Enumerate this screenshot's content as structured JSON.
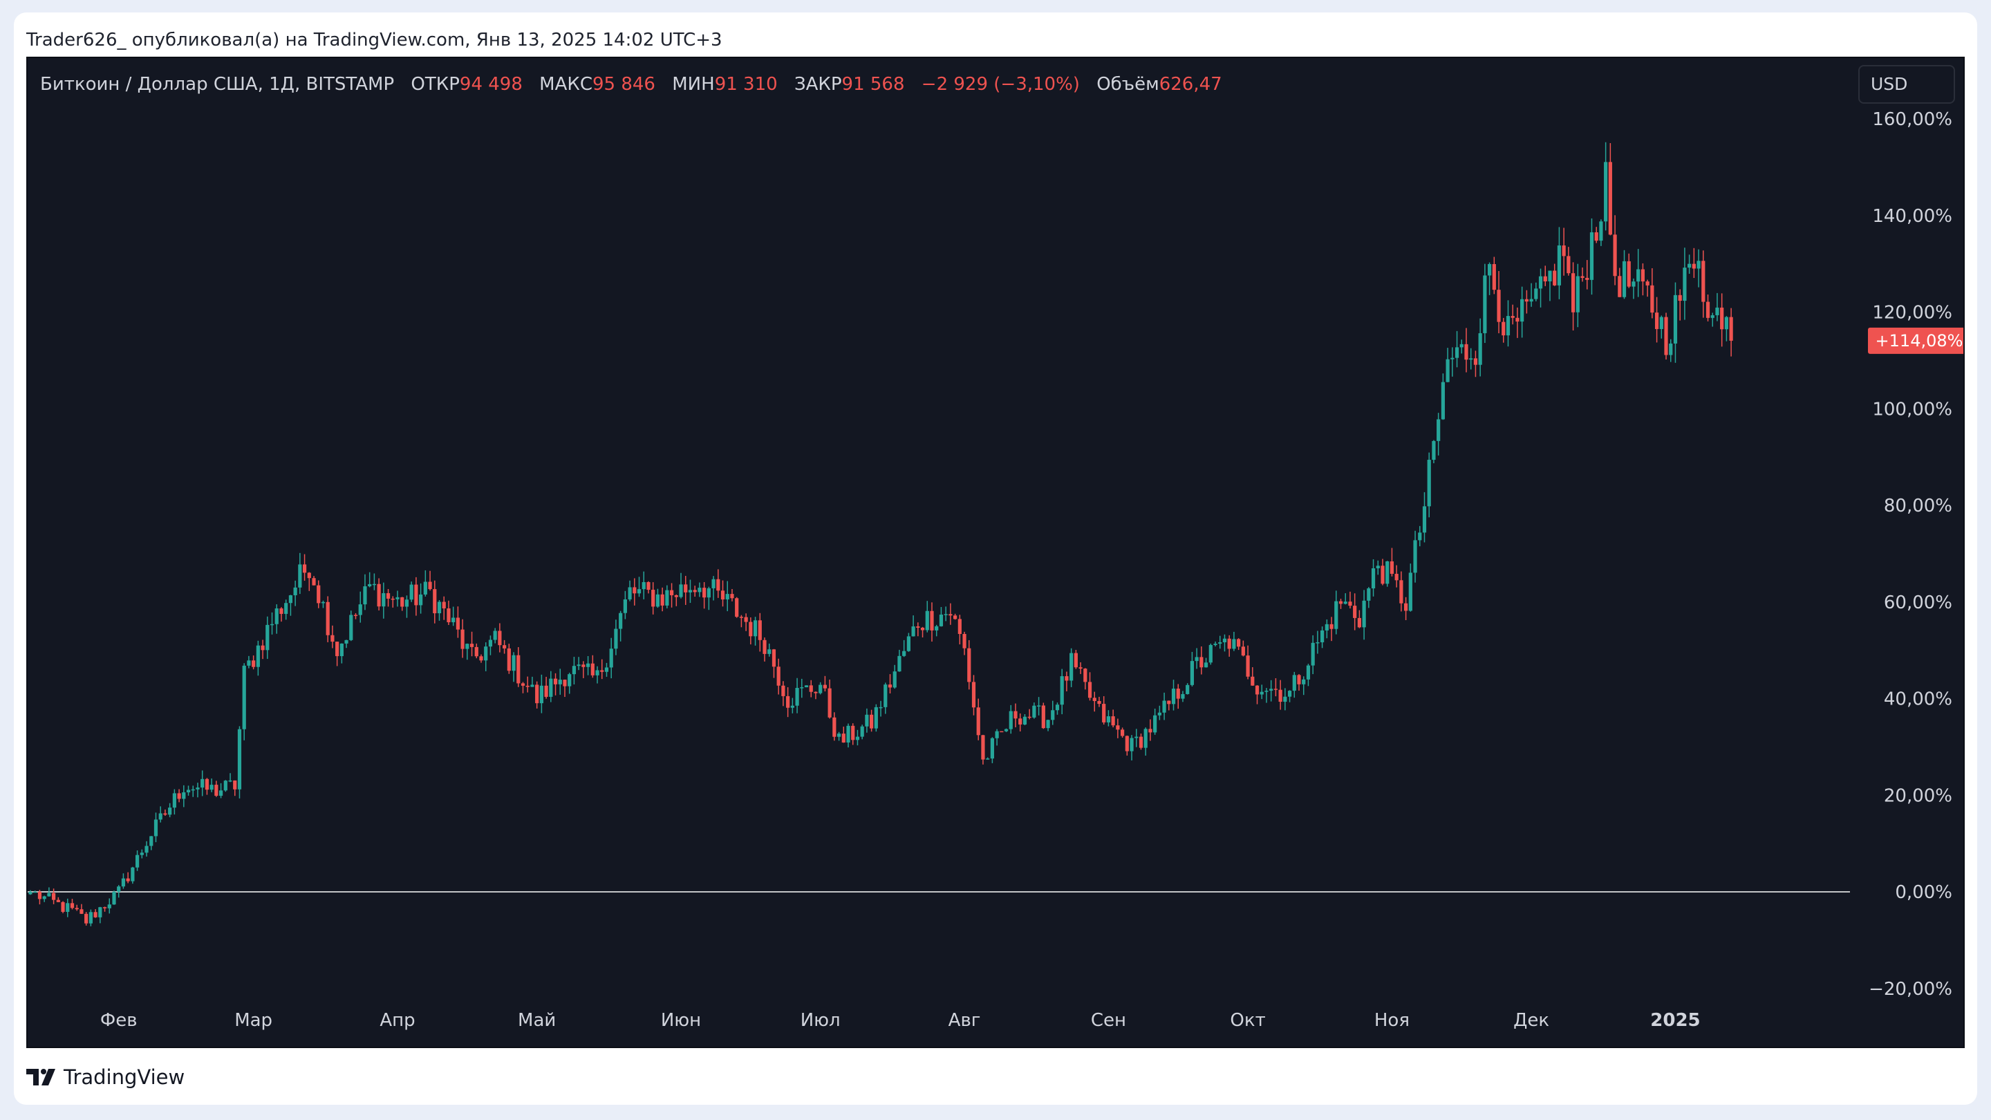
{
  "header": {
    "published_line": "Trader626_ опубликовал(а) на TradingView.com, Янв 13, 2025 14:02 UTC+3"
  },
  "legend": {
    "symbol": "Биткоин / Доллар США, 1Д, BITSTAMP",
    "open_label": "ОТКР",
    "open_value": "94 498",
    "high_label": "МАКС",
    "high_value": "95 846",
    "low_label": "МИН",
    "low_value": "91 310",
    "close_label": "ЗАКР",
    "close_value": "91 568",
    "change": "−2 929 (−3,10%)",
    "volume_label": "Объём",
    "volume_value": "626,47"
  },
  "currency_button": "USD",
  "footer": {
    "brand": "TradingView"
  },
  "colors": {
    "up": "#26a69a",
    "down": "#ef5350",
    "background": "#131722",
    "text": "#d1d4dc",
    "zero_line": "#ffffff"
  },
  "chart_data": {
    "type": "candlestick",
    "scale": "percent",
    "ylim": [
      -26,
      162
    ],
    "y_ticks": [
      160,
      140,
      120,
      100,
      80,
      60,
      40,
      20,
      0,
      -20
    ],
    "y_tick_labels": [
      "160,00%",
      "140,00%",
      "120,00%",
      "100,00%",
      "80,00%",
      "60,00%",
      "40,00%",
      "20,00%",
      "0,00%",
      "−20,00%"
    ],
    "x_ticks": [
      {
        "label": "Фев",
        "date": "2024-02-01"
      },
      {
        "label": "Мар",
        "date": "2024-03-01"
      },
      {
        "label": "Апр",
        "date": "2024-04-01"
      },
      {
        "label": "Май",
        "date": "2024-05-01"
      },
      {
        "label": "Июн",
        "date": "2024-06-01"
      },
      {
        "label": "Июл",
        "date": "2024-07-01"
      },
      {
        "label": "Авг",
        "date": "2024-08-01"
      },
      {
        "label": "Сен",
        "date": "2024-09-01"
      },
      {
        "label": "Окт",
        "date": "2024-10-01"
      },
      {
        "label": "Ноя",
        "date": "2024-11-01"
      },
      {
        "label": "Дек",
        "date": "2024-12-01"
      },
      {
        "label": "2025",
        "date": "2025-01-01"
      }
    ],
    "date_range": [
      "2024-01-13",
      "2025-01-13"
    ],
    "x_extent_end": "2025-02-04",
    "zero_line": 0,
    "last_value": 114.08,
    "last_value_label": "+114,08%",
    "close_path": [
      {
        "date": "2024-01-13",
        "value": 0
      },
      {
        "date": "2024-01-22",
        "value": -4
      },
      {
        "date": "2024-01-25",
        "value": -6
      },
      {
        "date": "2024-02-01",
        "value": 0
      },
      {
        "date": "2024-02-08",
        "value": 12
      },
      {
        "date": "2024-02-15",
        "value": 22
      },
      {
        "date": "2024-02-22",
        "value": 21
      },
      {
        "date": "2024-02-26",
        "value": 22
      },
      {
        "date": "2024-02-28",
        "value": 45
      },
      {
        "date": "2024-03-05",
        "value": 56
      },
      {
        "date": "2024-03-13",
        "value": 68
      },
      {
        "date": "2024-03-19",
        "value": 50
      },
      {
        "date": "2024-03-26",
        "value": 63
      },
      {
        "date": "2024-04-01",
        "value": 60
      },
      {
        "date": "2024-04-08",
        "value": 62
      },
      {
        "date": "2024-04-13",
        "value": 55
      },
      {
        "date": "2024-04-17",
        "value": 48
      },
      {
        "date": "2024-04-22",
        "value": 52
      },
      {
        "date": "2024-05-01",
        "value": 40
      },
      {
        "date": "2024-05-08",
        "value": 46
      },
      {
        "date": "2024-05-14",
        "value": 44
      },
      {
        "date": "2024-05-21",
        "value": 62
      },
      {
        "date": "2024-05-28",
        "value": 61
      },
      {
        "date": "2024-06-05",
        "value": 64
      },
      {
        "date": "2024-06-12",
        "value": 59
      },
      {
        "date": "2024-06-19",
        "value": 52
      },
      {
        "date": "2024-06-24",
        "value": 40
      },
      {
        "date": "2024-07-01",
        "value": 43
      },
      {
        "date": "2024-07-05",
        "value": 31
      },
      {
        "date": "2024-07-12",
        "value": 35
      },
      {
        "date": "2024-07-22",
        "value": 56
      },
      {
        "date": "2024-07-29",
        "value": 58
      },
      {
        "date": "2024-08-01",
        "value": 50
      },
      {
        "date": "2024-08-05",
        "value": 27
      },
      {
        "date": "2024-08-12",
        "value": 37
      },
      {
        "date": "2024-08-19",
        "value": 36
      },
      {
        "date": "2024-08-24",
        "value": 47
      },
      {
        "date": "2024-08-30",
        "value": 37
      },
      {
        "date": "2024-09-06",
        "value": 30
      },
      {
        "date": "2024-09-12",
        "value": 36
      },
      {
        "date": "2024-09-20",
        "value": 47
      },
      {
        "date": "2024-09-27",
        "value": 52
      },
      {
        "date": "2024-10-03",
        "value": 43
      },
      {
        "date": "2024-10-10",
        "value": 41
      },
      {
        "date": "2024-10-15",
        "value": 50
      },
      {
        "date": "2024-10-21",
        "value": 60
      },
      {
        "date": "2024-10-25",
        "value": 57
      },
      {
        "date": "2024-10-29",
        "value": 68
      },
      {
        "date": "2024-11-04",
        "value": 60
      },
      {
        "date": "2024-11-08",
        "value": 80
      },
      {
        "date": "2024-11-13",
        "value": 110
      },
      {
        "date": "2024-11-19",
        "value": 113
      },
      {
        "date": "2024-11-22",
        "value": 130
      },
      {
        "date": "2024-11-26",
        "value": 115
      },
      {
        "date": "2024-12-03",
        "value": 123
      },
      {
        "date": "2024-12-08",
        "value": 133
      },
      {
        "date": "2024-12-10",
        "value": 120
      },
      {
        "date": "2024-12-17",
        "value": 146
      },
      {
        "date": "2024-12-19",
        "value": 128
      },
      {
        "date": "2024-12-26",
        "value": 123
      },
      {
        "date": "2024-12-30",
        "value": 115
      },
      {
        "date": "2025-01-06",
        "value": 134
      },
      {
        "date": "2025-01-08",
        "value": 118
      },
      {
        "date": "2025-01-12",
        "value": 121
      },
      {
        "date": "2025-01-13",
        "value": 114.08
      }
    ]
  }
}
